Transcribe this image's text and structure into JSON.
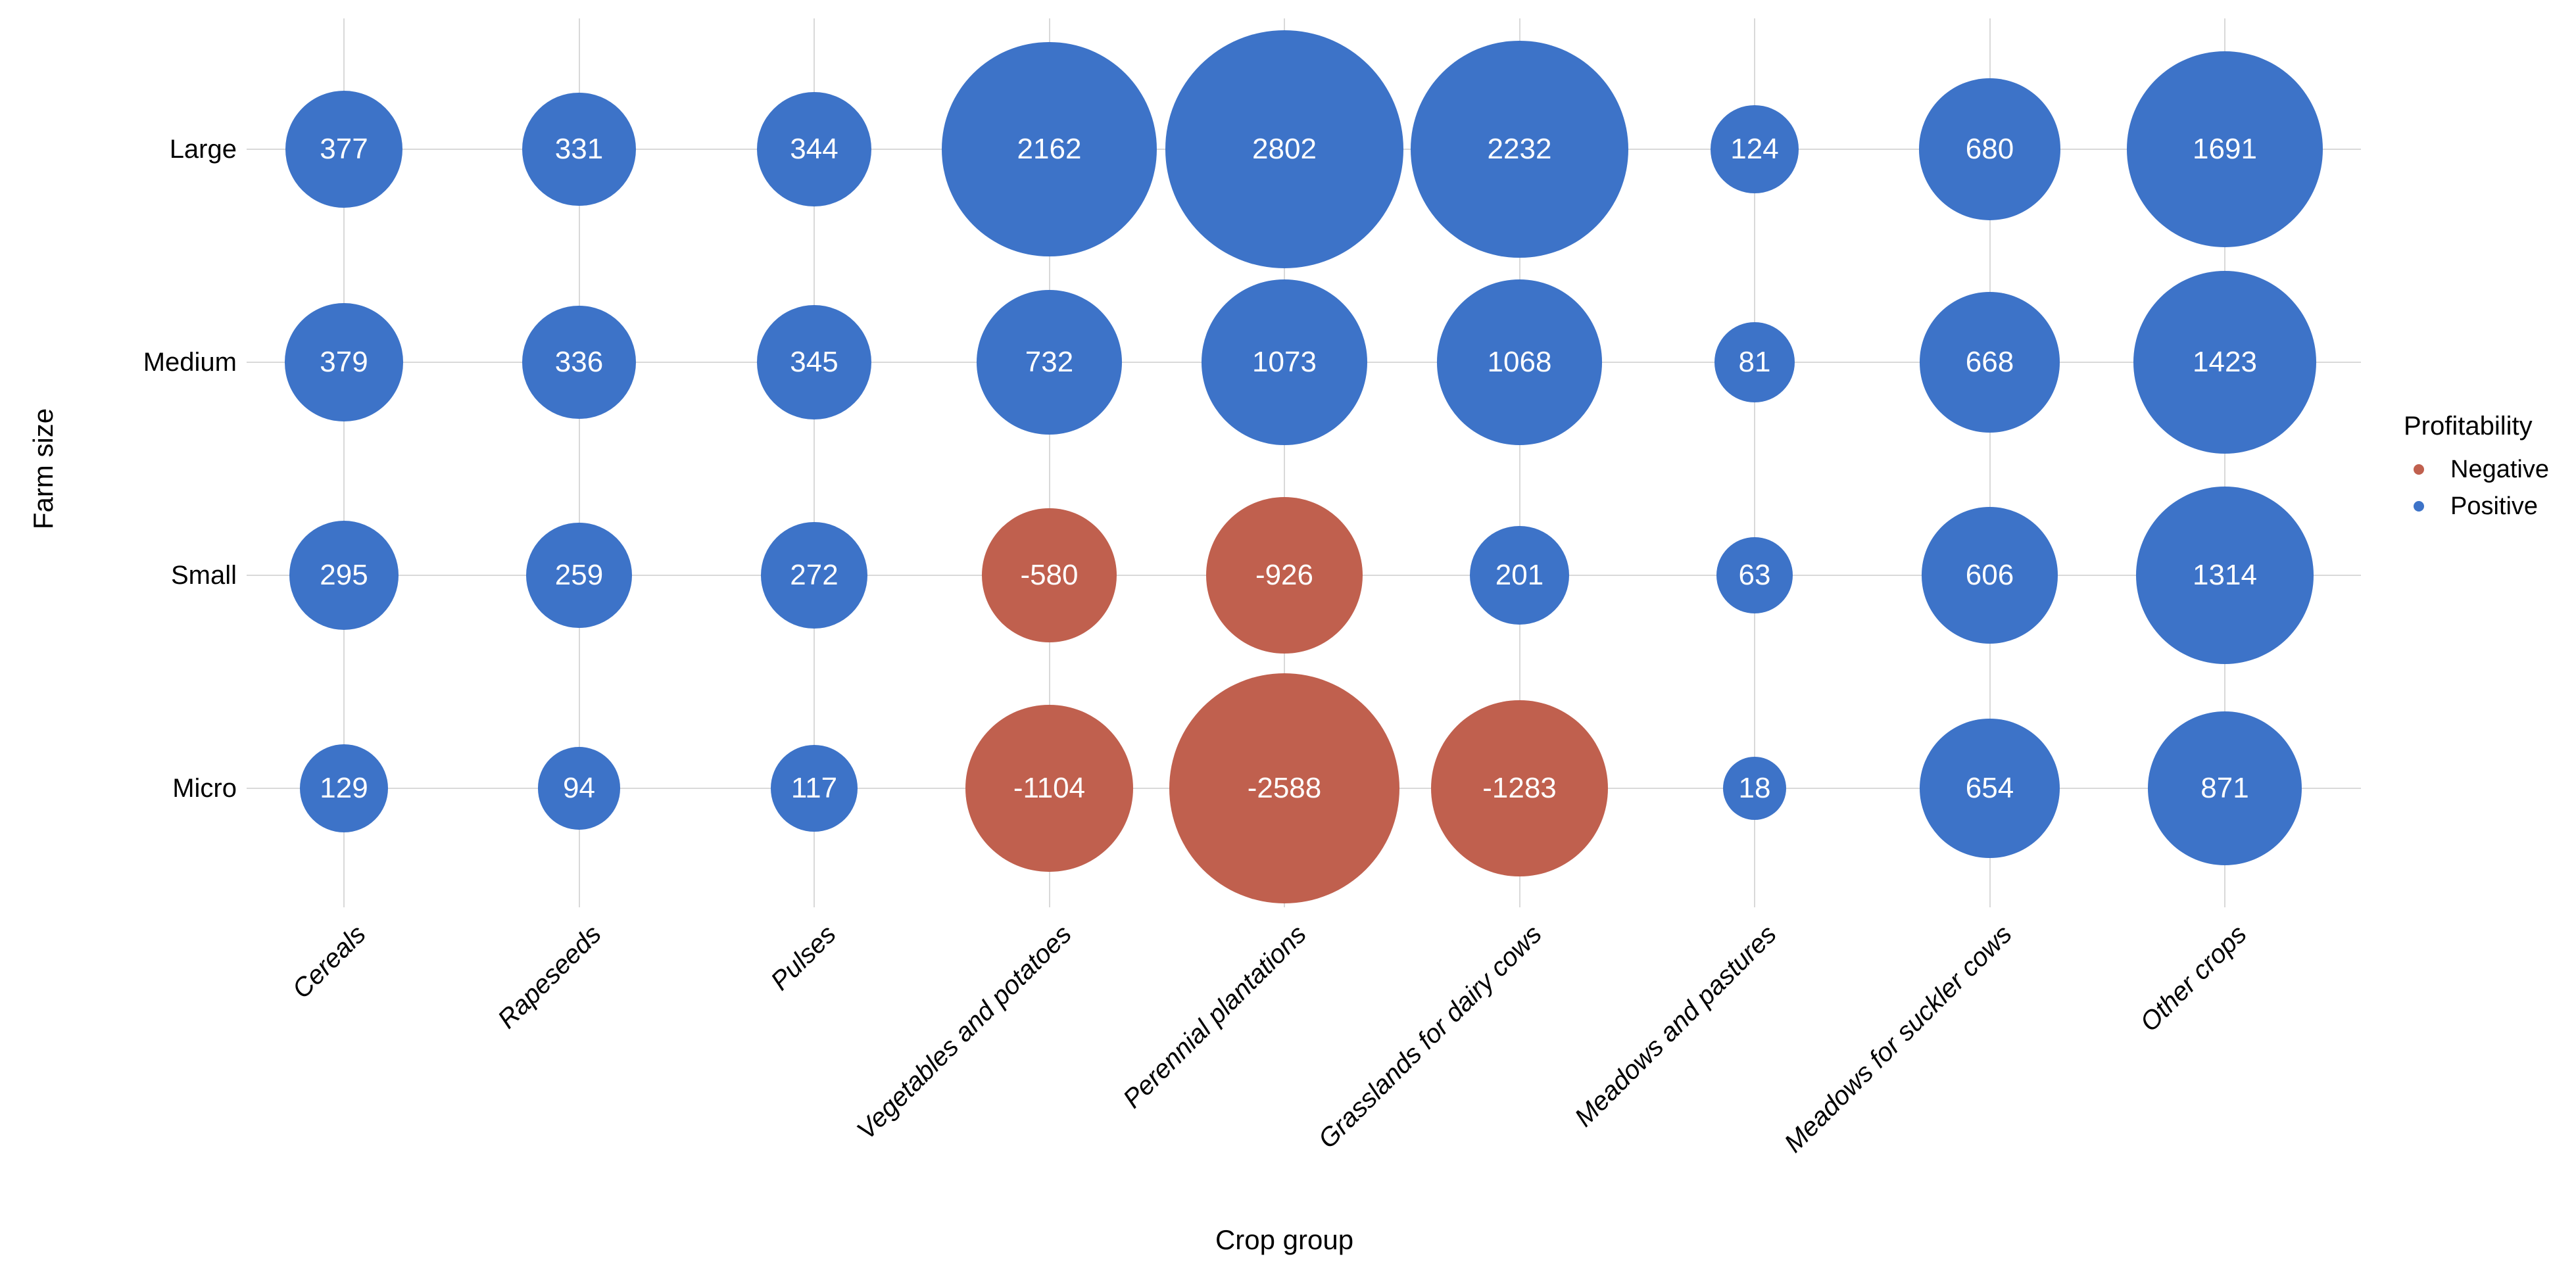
{
  "axes": {
    "x_title": "Crop group",
    "y_title": "Farm size"
  },
  "legend": {
    "title": "Profitability",
    "items": [
      {
        "label": "Negative",
        "color": "#C0604E"
      },
      {
        "label": "Positive",
        "color": "#3D73C8"
      }
    ]
  },
  "colors": {
    "positive": "#3D73C8",
    "negative": "#C0604E",
    "gridline": "#D9D9D9",
    "background": "#FFFFFF",
    "bubble_label": "#FFFFFF",
    "axis_text": "#000000"
  },
  "chart_data": {
    "type": "bubble",
    "title": "",
    "xlabel": "Crop group",
    "ylabel": "Farm size",
    "grid": true,
    "legend_position": "right",
    "size_encoding": "bubble radius ~ sqrt(abs(value))",
    "color_encoding": {
      "negative": "#C0604E",
      "positive": "#3D73C8"
    },
    "x_categories": [
      "Cereals",
      "Rapeseeds",
      "Pulses",
      "Vegetables and potatoes",
      "Perennial plantations",
      "Grasslands for dairy cows",
      "Meadows and pastures",
      "Meadows for suckler cows",
      "Other crops"
    ],
    "y_categories": [
      "Large",
      "Medium",
      "Small",
      "Micro"
    ],
    "series": [
      {
        "name": "Large",
        "values": [
          377,
          331,
          344,
          2162,
          2802,
          2232,
          124,
          680,
          1691
        ]
      },
      {
        "name": "Medium",
        "values": [
          379,
          336,
          345,
          732,
          1073,
          1068,
          81,
          668,
          1423
        ]
      },
      {
        "name": "Small",
        "values": [
          295,
          259,
          272,
          -580,
          -926,
          201,
          63,
          606,
          1314
        ]
      },
      {
        "name": "Micro",
        "values": [
          129,
          94,
          117,
          -1104,
          -2588,
          -1283,
          18,
          654,
          871
        ]
      }
    ]
  }
}
